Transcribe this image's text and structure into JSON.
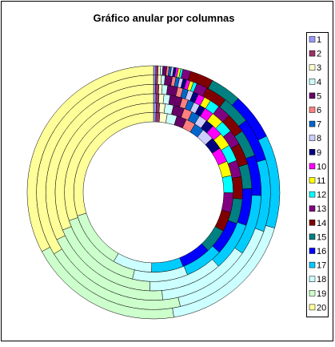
{
  "chart_data": {
    "type": "doughnut",
    "title": "Gráfico anular por columnas",
    "categories": [
      "1",
      "2",
      "3",
      "4",
      "5",
      "6",
      "7",
      "8",
      "9",
      "10",
      "11",
      "12",
      "13",
      "14",
      "15",
      "16",
      "17",
      "18",
      "19",
      "20"
    ],
    "colors": [
      "#9999FF",
      "#993366",
      "#FFFFCC",
      "#CCFFFF",
      "#660066",
      "#FF8080",
      "#0066CC",
      "#CCCCFF",
      "#000080",
      "#FF00FF",
      "#FFFF00",
      "#00FFFF",
      "#800080",
      "#800000",
      "#008080",
      "#0000FF",
      "#00CCFF",
      "#CCFFFF",
      "#CCFFCC",
      "#FFFF99"
    ],
    "series": [
      {
        "values": [
          0.3,
          0.3,
          0.3,
          0.3,
          0.5,
          0.3,
          0.3,
          0.3,
          0.3,
          0.3,
          0.3,
          0.3,
          1,
          3,
          4,
          6,
          12,
          18,
          20,
          33
        ]
      },
      {
        "values": [
          0.3,
          0.3,
          0.5,
          0.5,
          1,
          0.5,
          0.5,
          0.5,
          0.5,
          0.5,
          0.5,
          0.5,
          1.5,
          3,
          4,
          6,
          10,
          16,
          20,
          34
        ]
      },
      {
        "values": [
          0.3,
          0.5,
          0.5,
          0.8,
          1.5,
          0.8,
          0.8,
          0.8,
          0.8,
          1,
          1,
          1.5,
          2,
          3,
          4,
          6,
          9,
          14,
          19,
          32
        ]
      },
      {
        "values": [
          0.4,
          0.5,
          0.8,
          1,
          2,
          1,
          1,
          1,
          1,
          1.5,
          2,
          2,
          2.5,
          3.5,
          4,
          6,
          8,
          12,
          18,
          31
        ]
      },
      {
        "values": [
          0.5,
          0.6,
          1,
          1.5,
          2,
          1.5,
          1.5,
          1.5,
          1.5,
          2,
          2.5,
          3,
          3,
          4,
          4.5,
          6,
          7,
          10,
          16,
          30
        ]
      },
      {
        "values": [
          0.5,
          0.8,
          1.5,
          2,
          2,
          2,
          2,
          2.5,
          2.5,
          3,
          3,
          3.5,
          4,
          4,
          5,
          6,
          6.5,
          8,
          12,
          30
        ]
      }
    ]
  }
}
